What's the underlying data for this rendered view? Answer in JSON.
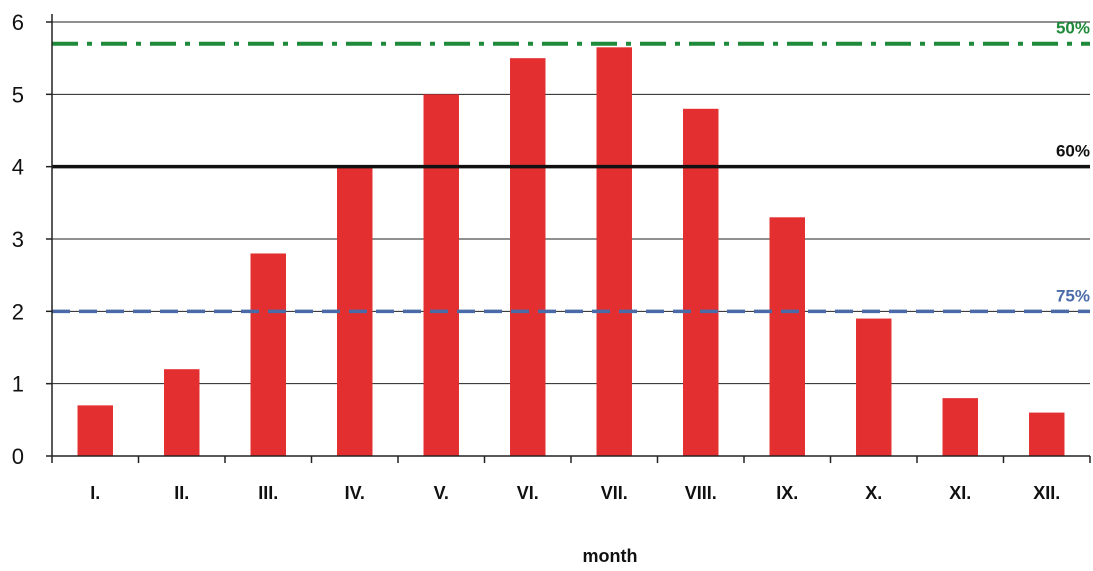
{
  "chart_data": {
    "type": "bar",
    "categories": [
      "I.",
      "II.",
      "III.",
      "IV.",
      "V.",
      "VI.",
      "VII.",
      "VIII.",
      "IX.",
      "X.",
      "XI.",
      "XII."
    ],
    "values": [
      0.7,
      1.2,
      2.8,
      4.0,
      5.0,
      5.5,
      5.65,
      4.8,
      3.3,
      1.9,
      0.8,
      0.6
    ],
    "xlabel": "month",
    "ylabel": "",
    "ylim": [
      0,
      6
    ],
    "yticks": [
      "0",
      "1",
      "2",
      "3",
      "4",
      "5",
      "6"
    ],
    "grid": true,
    "bar_color": "#e32f2f",
    "reference_lines": [
      {
        "label": "50%",
        "value": 5.7,
        "style": "dash-dot",
        "color": "#1f8a3a"
      },
      {
        "label": "60%",
        "value": 4.0,
        "style": "solid",
        "color": "#111111"
      },
      {
        "label": "75%",
        "value": 2.0,
        "style": "dashed",
        "color": "#4a6aa8"
      }
    ]
  }
}
